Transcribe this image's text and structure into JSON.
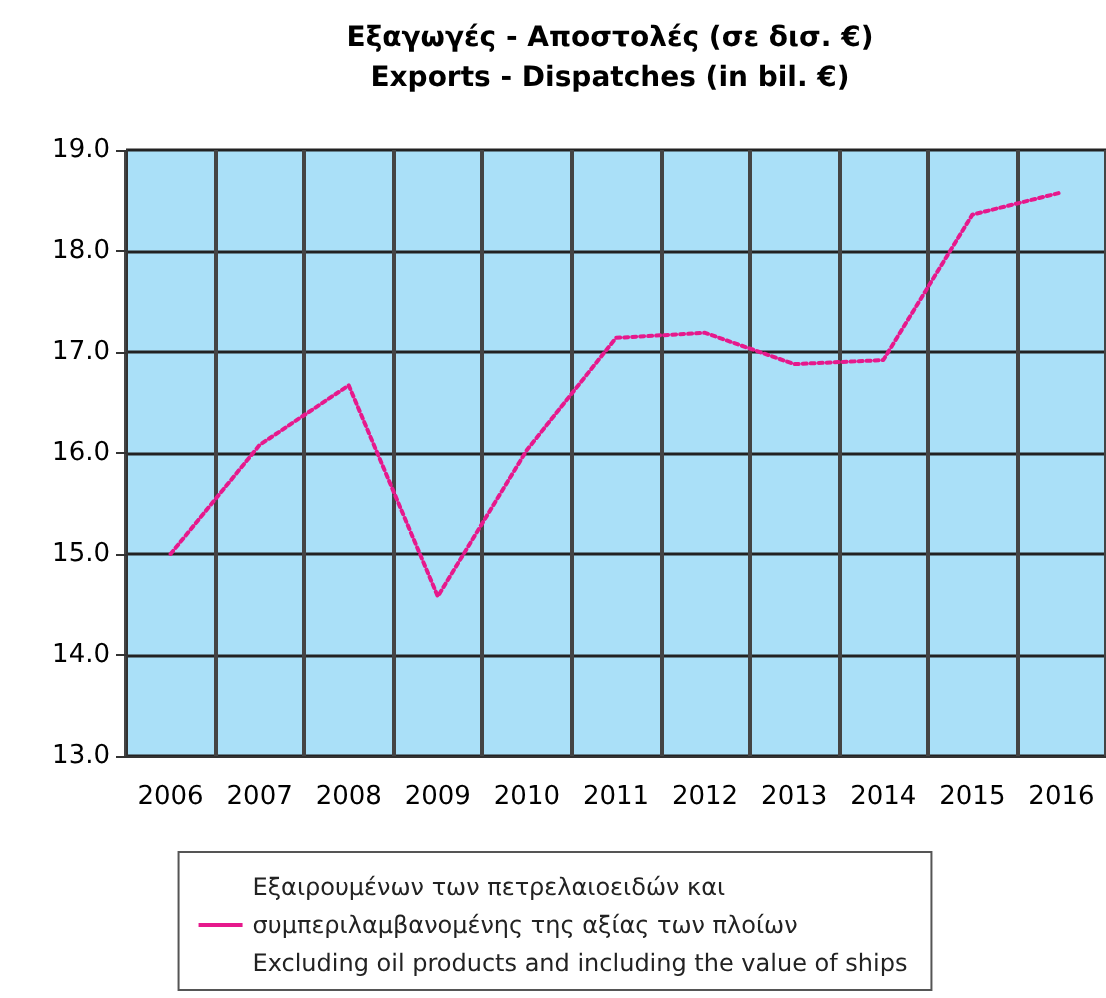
{
  "chart_data": {
    "type": "line",
    "title": "Εξαγωγές - Αποστολές (σε δισ. €)\nExports - Dispatches (in bil. €)",
    "categories": [
      "2006",
      "2007",
      "2008",
      "2009",
      "2010",
      "2011",
      "2012",
      "2013",
      "2014",
      "2015",
      "2016"
    ],
    "series": [
      {
        "name": "Εξαιρουμένων των πετρελαιοειδών και\nσυμπεριλαμβανομένης της αξίας των πλοίων\nExcluding oil products and including the value of ships",
        "color": "#e6198c",
        "values": [
          15.0,
          16.08,
          16.67,
          14.58,
          16.03,
          17.14,
          17.19,
          16.88,
          16.92,
          18.36,
          18.58
        ]
      }
    ],
    "ylim": [
      13,
      19
    ],
    "yticks": [
      {
        "value": 13,
        "label": "13.0"
      },
      {
        "value": 14,
        "label": "14.0"
      },
      {
        "value": 15,
        "label": "15.0"
      },
      {
        "value": 16,
        "label": "16.0"
      },
      {
        "value": 17,
        "label": "17.0"
      },
      {
        "value": 18,
        "label": "18.0"
      },
      {
        "value": 19,
        "label": "19.0"
      }
    ],
    "grid": true,
    "legend": "bottom",
    "marker": "none",
    "line_style": "dotted"
  }
}
